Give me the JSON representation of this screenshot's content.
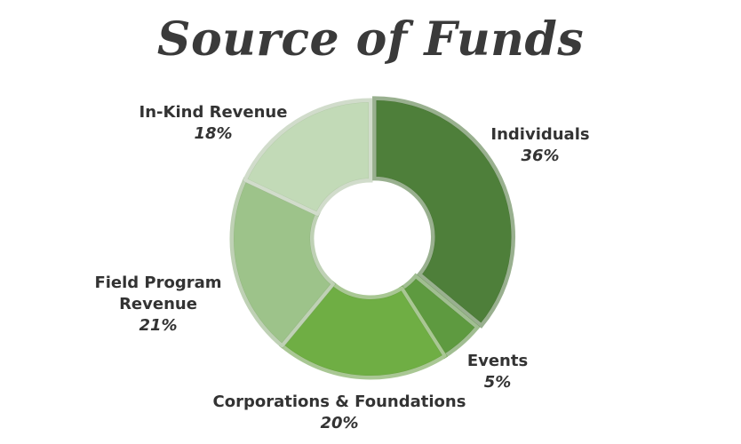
{
  "chart_data": {
    "type": "pie",
    "title": "Source of Funds",
    "slices": [
      {
        "label": "Individuals",
        "value": 36,
        "pct_label": "36%",
        "color": "#4e7f3a"
      },
      {
        "label": "Events",
        "value": 5,
        "pct_label": "5%",
        "color": "#5e9a40"
      },
      {
        "label": "Corporations & Foundations",
        "value": 20,
        "pct_label": "20%",
        "color": "#6fae44"
      },
      {
        "label": "Field Program Revenue",
        "value": 21,
        "pct_label": "21%",
        "color": "#9dc38a"
      },
      {
        "label": "In-Kind Revenue",
        "value": 18,
        "pct_label": "18%",
        "color": "#c2dab7"
      }
    ],
    "legend": "none"
  }
}
